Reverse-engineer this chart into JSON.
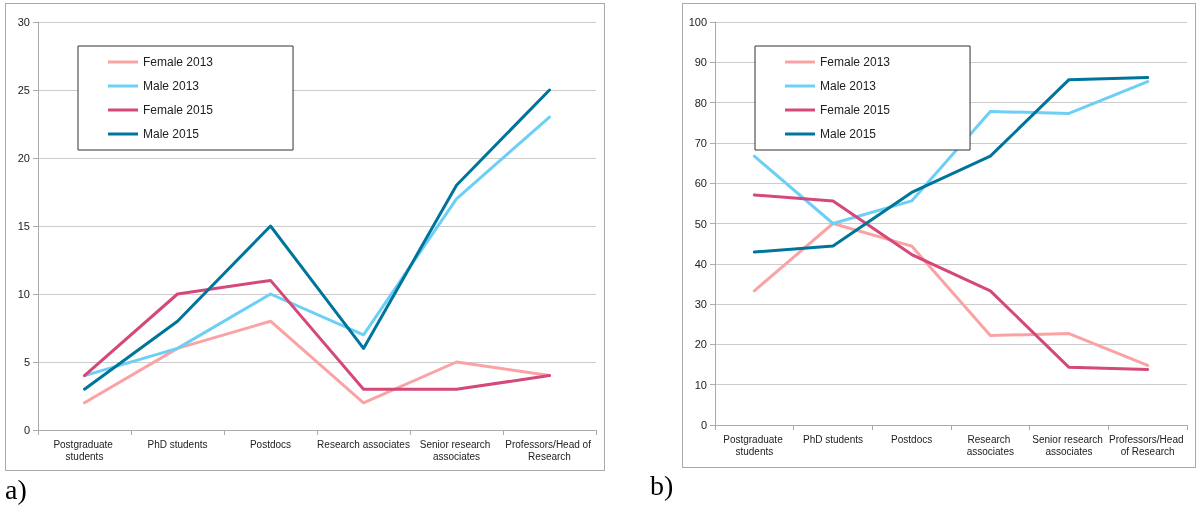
{
  "chart_data": [
    {
      "type": "line",
      "categories": [
        "Postgraduate students",
        "PhD students",
        "Postdocs",
        "Research associates",
        "Senior research associates",
        "Professors/Head of Research"
      ],
      "series": [
        {
          "name": "Female 2013",
          "color": "#f9a3a4",
          "values": [
            2,
            6,
            8,
            2,
            5,
            4
          ]
        },
        {
          "name": "Male 2013",
          "color": "#6dcff6",
          "values": [
            4,
            6,
            10,
            7,
            17,
            23
          ]
        },
        {
          "name": "Female 2015",
          "color": "#d4487a",
          "values": [
            4,
            10,
            11,
            3,
            3,
            4
          ]
        },
        {
          "name": "Male 2015",
          "color": "#00759c",
          "values": [
            3,
            8,
            15,
            6,
            18,
            25
          ]
        }
      ],
      "ylim": [
        0,
        30
      ],
      "yticks": [
        0,
        5,
        10,
        15,
        20,
        25,
        30
      ],
      "grid": "y",
      "legend": "top left",
      "marker": "none",
      "line_style": "solid",
      "annotations": [
        "a)"
      ]
    },
    {
      "type": "line",
      "categories": [
        "Postgraduate students",
        "PhD students",
        "Postdocs",
        "Research associates",
        "Senior research associates",
        "Professors/Head of Research"
      ],
      "series": [
        {
          "name": "Female 2013",
          "color": "#f9a3a4",
          "values": [
            33.3,
            50,
            44.4,
            22.2,
            22.7,
            14.8
          ]
        },
        {
          "name": "Male 2013",
          "color": "#6dcff6",
          "values": [
            66.7,
            50,
            55.6,
            77.8,
            77.3,
            85.2
          ]
        },
        {
          "name": "Female 2015",
          "color": "#d4487a",
          "values": [
            57.1,
            55.6,
            42.3,
            33.3,
            14.3,
            13.8
          ]
        },
        {
          "name": "Male 2015",
          "color": "#00759c",
          "values": [
            42.9,
            44.4,
            57.7,
            66.7,
            85.7,
            86.2
          ]
        }
      ],
      "ylim": [
        0,
        100
      ],
      "yticks": [
        0,
        10,
        20,
        30,
        40,
        50,
        60,
        70,
        80,
        90,
        100
      ],
      "grid": "y",
      "legend": "top left",
      "marker": "none",
      "line_style": "solid",
      "annotations": [
        "b)"
      ]
    }
  ]
}
